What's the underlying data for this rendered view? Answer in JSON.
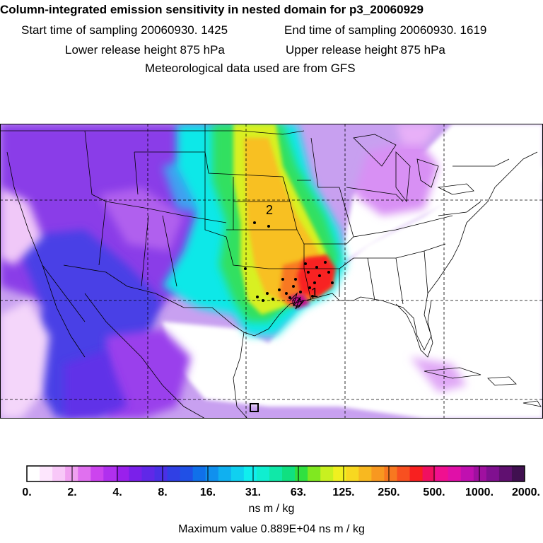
{
  "header": {
    "title": "Column-integrated emission sensitivity in nested domain for p3_20060929",
    "start_time": "Start time of sampling 20060930.  1425",
    "end_time": "End time of sampling 20060930.  1619",
    "lower_release": "Lower release height  875 hPa",
    "upper_release": "Upper release height  875 hPa",
    "met_data": "Meteorological data used are from GFS"
  },
  "map": {
    "markers": [
      {
        "label": "1",
        "lon": -94.6,
        "lat": 30.0
      },
      {
        "label": "2",
        "lon": -98.6,
        "lat": 36.8
      }
    ],
    "grid_lons": [
      -110,
      -100,
      -90,
      -80
    ],
    "grid_lats": [
      20,
      30,
      40
    ],
    "extent": {
      "lon_min": -125,
      "lon_max": -70,
      "lat_min": 15,
      "lat_max": 50
    },
    "colors": {
      "coast": "#000000",
      "grid": "#000000"
    }
  },
  "colorbar": {
    "tick_labels": [
      "0.",
      "2.",
      "4.",
      "8.",
      "16.",
      "31.",
      "63.",
      "125.",
      "250.",
      "500.",
      "1000.",
      "2000."
    ],
    "unit": "ns m / kg",
    "colors": [
      "#ffffff",
      "#fde6fd",
      "#f8c8f8",
      "#f0a0f0",
      "#e070ef",
      "#cc44ee",
      "#b030ee",
      "#9a20ec",
      "#7a20ea",
      "#6028e8",
      "#4a30e6",
      "#3040e4",
      "#2050e6",
      "#1070ea",
      "#1090ee",
      "#10b0f0",
      "#10d0f0",
      "#10eeee",
      "#10eed0",
      "#10e8a8",
      "#10e080",
      "#30e040",
      "#80e820",
      "#c8f020",
      "#f0f020",
      "#f8d820",
      "#f8b820",
      "#f89820",
      "#f87820",
      "#f85020",
      "#f82020",
      "#f01060",
      "#f01090",
      "#e010a8",
      "#c010b0",
      "#a010a0",
      "#801090",
      "#601070",
      "#401050"
    ]
  },
  "footer": {
    "max_value": "Maximum value  0.889E+04 ns m / kg"
  }
}
